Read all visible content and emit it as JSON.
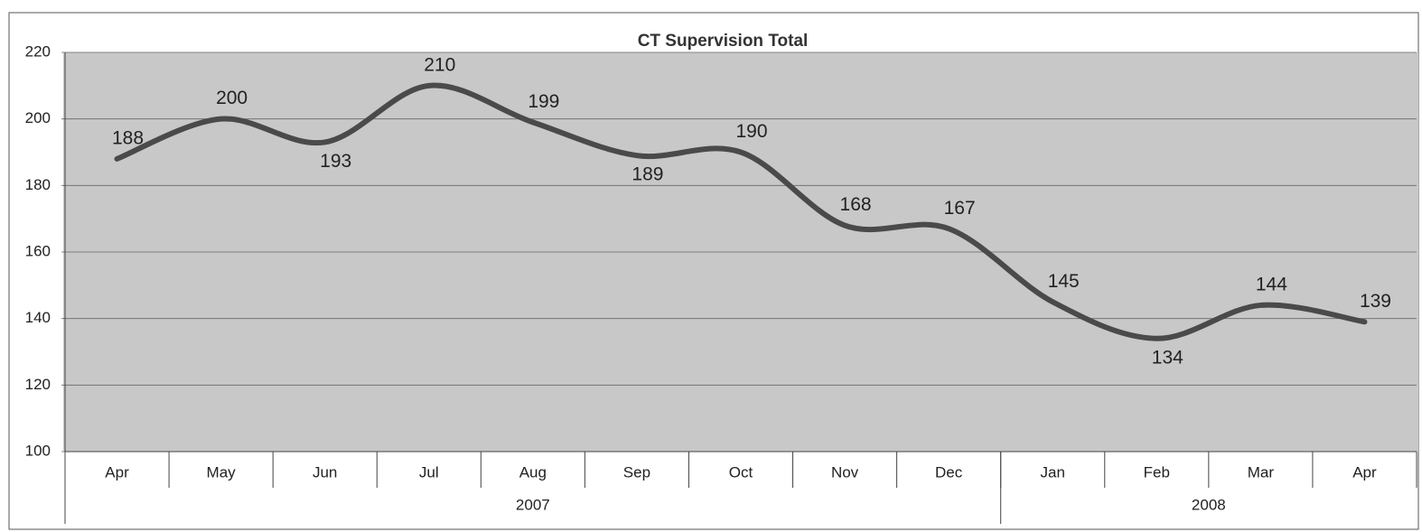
{
  "chart_data": {
    "type": "line",
    "title": "CT Supervision Total",
    "categories": [
      "Apr",
      "May",
      "Jun",
      "Jul",
      "Aug",
      "Sep",
      "Oct",
      "Nov",
      "Dec",
      "Jan",
      "Feb",
      "Mar",
      "Apr"
    ],
    "x_groups": [
      {
        "label": "2007",
        "span": 9
      },
      {
        "label": "2008",
        "span": 4
      }
    ],
    "values": [
      188,
      200,
      193,
      210,
      199,
      189,
      190,
      168,
      167,
      145,
      134,
      144,
      139
    ],
    "color": "#4a4a4a",
    "ylim": [
      100,
      220
    ],
    "yticks": [
      100,
      120,
      140,
      160,
      180,
      200,
      220
    ],
    "grid": true
  }
}
